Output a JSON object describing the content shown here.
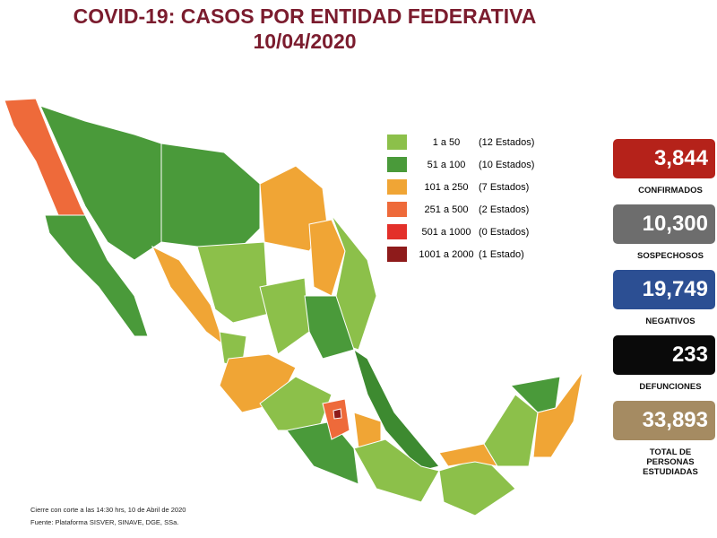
{
  "header": {
    "title": "COVID-19: CASOS POR ENTIDAD FEDERATIVA",
    "date": "10/04/2020"
  },
  "legend": [
    {
      "range": "1 a 50",
      "count": "(12 Estados)",
      "color": "#8cc04a"
    },
    {
      "range": "51 a 100",
      "count": "(10 Estados)",
      "color": "#4a9a3a"
    },
    {
      "range": "101 a 250",
      "count": "(7 Estados)",
      "color": "#f0a535"
    },
    {
      "range": "251 a 500",
      "count": "(2 Estados)",
      "color": "#ee6a3a"
    },
    {
      "range": "501 a 1000",
      "count": "(0 Estados)",
      "color": "#e3302a"
    },
    {
      "range": "1001 a 2000",
      "count": "(1 Estado)",
      "color": "#8e1b1b"
    }
  ],
  "stats": [
    {
      "value": "3,844",
      "label": "CONFIRMADOS",
      "color": "#b5221a"
    },
    {
      "value": "10,300",
      "label": "SOSPECHOSOS",
      "color": "#6d6d6d"
    },
    {
      "value": "19,749",
      "label": "NEGATIVOS",
      "color": "#2c4f93"
    },
    {
      "value": "233",
      "label": "DEFUNCIONES",
      "color": "#0a0a0a"
    },
    {
      "value": "33,893",
      "label": "TOTAL DE PERSONAS ESTUDIADAS",
      "color": "#a58b62"
    }
  ],
  "footer": {
    "note": "Cierre con corte a las 14:30 hrs, 10 de Abril de 2020",
    "source": "Fuente: Plataforma SISVER, SINAVE, DGE, SSa."
  }
}
